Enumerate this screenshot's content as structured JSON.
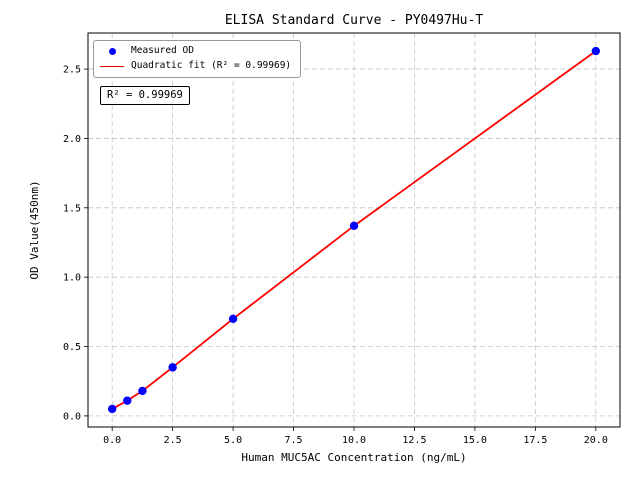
{
  "chart_data": {
    "type": "scatter",
    "title": "ELISA Standard Curve - PY0497Hu-T",
    "xlabel": "Human MUC5AC Concentration (ng/mL)",
    "ylabel": "OD Value(450nm)",
    "xlim": [
      -1,
      21
    ],
    "ylim": [
      -0.08,
      2.76
    ],
    "xticks": [
      0,
      2.5,
      5,
      7.5,
      10,
      12.5,
      15,
      17.5,
      20
    ],
    "xtick_labels": [
      "0.0",
      "2.5",
      "5.0",
      "7.5",
      "10.0",
      "12.5",
      "15.0",
      "17.5",
      "20.0"
    ],
    "yticks": [
      0,
      0.5,
      1,
      1.5,
      2,
      2.5
    ],
    "ytick_labels": [
      "0.0",
      "0.5",
      "1.0",
      "1.5",
      "2.0",
      "2.5"
    ],
    "grid": true,
    "grid_color": "#c4c4c4",
    "legend_position": "upper-left",
    "series": [
      {
        "name": "Measured OD",
        "type": "scatter",
        "marker": "circle",
        "color": "#0000ff",
        "x": [
          0,
          0.625,
          1.25,
          2.5,
          5,
          10,
          20
        ],
        "y": [
          0.05,
          0.11,
          0.18,
          0.35,
          0.7,
          1.37,
          2.63
        ]
      },
      {
        "name": "Quadratic fit (R² = 0.99969)",
        "type": "line",
        "color": "#ff0000"
      }
    ],
    "annotation": "R² = 0.99969",
    "r_squared": 0.99969
  }
}
